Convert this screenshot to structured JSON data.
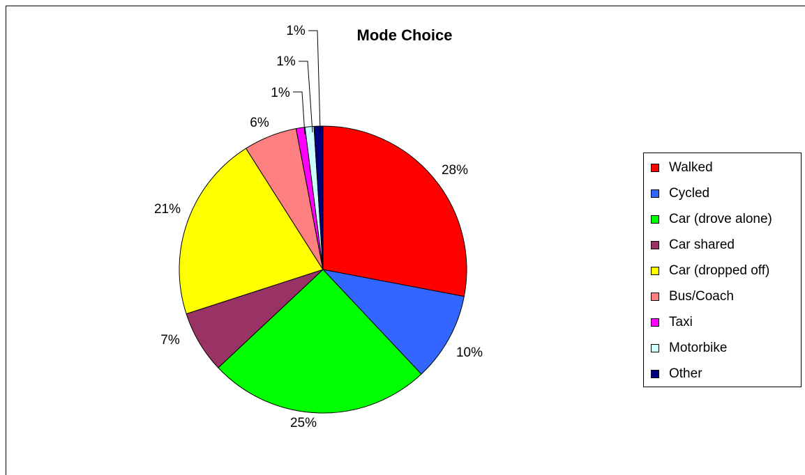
{
  "chart_data": {
    "type": "pie",
    "title": "Mode Choice",
    "categories": [
      "Walked",
      "Cycled",
      "Car (drove alone)",
      "Car shared",
      "Car (dropped off)",
      "Bus/Coach",
      "Taxi",
      "Motorbike",
      "Other"
    ],
    "values": [
      28,
      10,
      25,
      7,
      21,
      6,
      1,
      1,
      1
    ],
    "labels": [
      "28%",
      "10%",
      "25%",
      "7%",
      "21%",
      "6%",
      "1%",
      "1%",
      "1%"
    ],
    "colors": [
      "#FF0000",
      "#3366FF",
      "#00FF00",
      "#993366",
      "#FFFF00",
      "#FF8080",
      "#FF00FF",
      "#CCFFFF",
      "#000080"
    ],
    "start_angle": "12 o'clock",
    "direction": "clockwise",
    "legend_position": "right"
  }
}
